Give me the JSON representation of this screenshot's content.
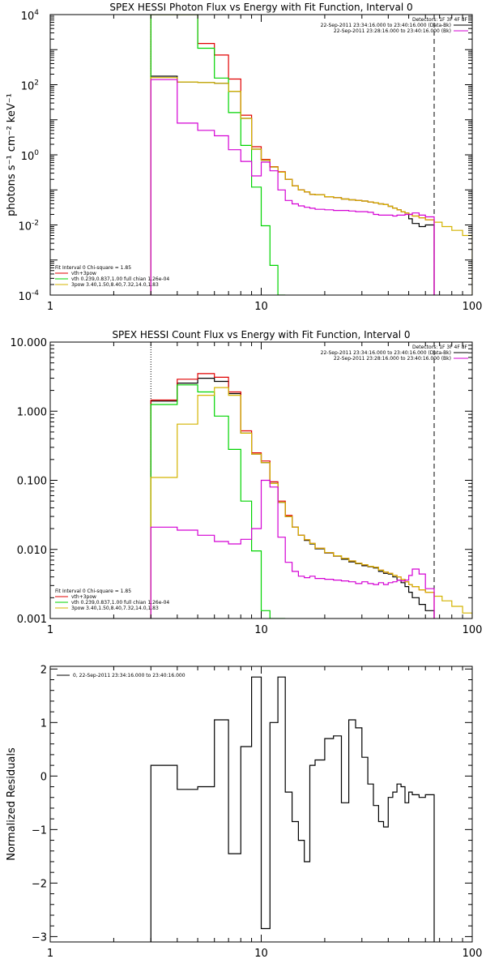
{
  "chart_data": [
    {
      "type": "line",
      "title": "SPEX HESSI Photon Flux vs Energy with Fit Function, Interval 0",
      "xlabel": "",
      "ylabel": "photons s⁻¹ cm⁻² keV⁻¹",
      "xscale": "log",
      "yscale": "log",
      "xlim": [
        1,
        100
      ],
      "ylim": [
        0.0001,
        10000
      ],
      "x_ticks": [
        1,
        10,
        100
      ],
      "y_ticks": [
        0.0001,
        0.01,
        1,
        100,
        10000
      ],
      "x_tick_labels": [
        "1",
        "10",
        "100"
      ],
      "y_tick_labels": [
        {
          "base": "10",
          "exp": "-4"
        },
        {
          "base": "10",
          "exp": "-2"
        },
        {
          "base": "10",
          "exp": "0"
        },
        {
          "base": "10",
          "exp": "2"
        },
        {
          "base": "10",
          "exp": "4"
        }
      ],
      "vlines": [
        {
          "x": 3.0,
          "style": "dotted",
          "color": "#000000"
        },
        {
          "x": 66.0,
          "style": "dashed",
          "color": "#000000"
        }
      ],
      "legend_top": [
        {
          "text": "Detectors: 1F 3F 4F 8F",
          "color": ""
        },
        {
          "text": "22-Sep-2011 23:34:16.000 to 23:40:16.000 (Data-Bk)",
          "color": "#000000"
        },
        {
          "text": "22-Sep-2011 23:28:16.000 to 23:40:16.000 (Bk)",
          "color": "#d400d4"
        }
      ],
      "legend_bottom": [
        {
          "text": "Fit Interval 0   Chi-square = 1.85",
          "color": ""
        },
        {
          "text": "vth+3pow",
          "color": "#e00000"
        },
        {
          "text": "vth 0.239,0.837,1.00  full chian 1.26e-04",
          "color": "#00d400"
        },
        {
          "text": "3pow 3.40,1.50,8.40,7.32,14.0,1.83",
          "color": "#d4b400"
        }
      ],
      "series": [
        {
          "color": "#000000",
          "edges": [
            3,
            4,
            5,
            6,
            7,
            8,
            9,
            10,
            11,
            12,
            13,
            14,
            15,
            16,
            17,
            18,
            20,
            22,
            24,
            26,
            28,
            30,
            32,
            34,
            36,
            38,
            40,
            42,
            44,
            46,
            48,
            50,
            52,
            56,
            60,
            66
          ],
          "values": [
            175,
            120,
            115,
            110,
            65,
            11,
            1.45,
            0.7,
            0.45,
            0.32,
            0.2,
            0.13,
            0.1,
            0.088,
            0.075,
            0.072,
            0.064,
            0.06,
            0.055,
            0.052,
            0.05,
            0.048,
            0.045,
            0.043,
            0.04,
            0.038,
            0.034,
            0.03,
            0.027,
            0.024,
            0.022,
            0.015,
            0.011,
            0.009,
            0.01
          ]
        },
        {
          "color": "#e00000",
          "edges": [
            3,
            4,
            5,
            6,
            7,
            8,
            9,
            10,
            11,
            12,
            13,
            14,
            15,
            16,
            17,
            18,
            20,
            22,
            24,
            26,
            28,
            30,
            32,
            34,
            36,
            38,
            40,
            42,
            44,
            46,
            48,
            50,
            52,
            56,
            60,
            66
          ],
          "values": [
            10000,
            10000,
            1500,
            700,
            145,
            13.5,
            1.7,
            0.74,
            0.46,
            0.33,
            0.2,
            0.13,
            0.1,
            0.088,
            0.075,
            0.072,
            0.064,
            0.06,
            0.055,
            0.052,
            0.05,
            0.048,
            0.045,
            0.043,
            0.04,
            0.038,
            0.034,
            0.03,
            0.027,
            0.024,
            0.022,
            0.02,
            0.018,
            0.016,
            0.014
          ]
        },
        {
          "color": "#00d400",
          "edges": [
            3,
            4,
            5,
            6,
            7,
            8,
            9,
            10,
            11,
            12,
            13
          ],
          "values": [
            10000,
            10000,
            1100,
            155,
            16,
            1.85,
            0.12,
            0.0095,
            0.0007,
            5e-05
          ]
        },
        {
          "color": "#d4b400",
          "edges": [
            3,
            4,
            5,
            6,
            7,
            8,
            9,
            10,
            11,
            12,
            13,
            14,
            15,
            16,
            17,
            18,
            20,
            22,
            24,
            26,
            28,
            30,
            32,
            34,
            36,
            38,
            40,
            42,
            44,
            46,
            48,
            50,
            52,
            56,
            60,
            66,
            72,
            80,
            90,
            100
          ],
          "values": [
            160,
            120,
            115,
            110,
            65,
            11,
            1.45,
            0.7,
            0.45,
            0.32,
            0.2,
            0.13,
            0.1,
            0.088,
            0.075,
            0.072,
            0.064,
            0.06,
            0.055,
            0.052,
            0.05,
            0.048,
            0.045,
            0.043,
            0.04,
            0.038,
            0.034,
            0.03,
            0.027,
            0.024,
            0.022,
            0.02,
            0.018,
            0.016,
            0.014,
            0.012,
            0.009,
            0.007,
            0.005
          ]
        },
        {
          "color": "#d400d4",
          "edges": [
            3,
            4,
            5,
            6,
            7,
            8,
            9,
            10,
            11,
            12,
            13,
            14,
            15,
            16,
            17,
            18,
            20,
            22,
            24,
            26,
            28,
            30,
            32,
            34,
            36,
            38,
            40,
            42,
            44,
            46,
            48,
            50,
            52,
            56,
            60,
            66
          ],
          "values": [
            140,
            8,
            5,
            3.5,
            1.4,
            0.65,
            0.25,
            0.62,
            0.35,
            0.1,
            0.05,
            0.04,
            0.035,
            0.032,
            0.03,
            0.028,
            0.027,
            0.026,
            0.026,
            0.025,
            0.024,
            0.024,
            0.023,
            0.02,
            0.019,
            0.019,
            0.019,
            0.018,
            0.019,
            0.019,
            0.02,
            0.02,
            0.022,
            0.019,
            0.017
          ]
        }
      ]
    },
    {
      "type": "line",
      "title": "SPEX HESSI Count Flux vs Energy with Fit Function, Interval 0",
      "xlabel": "",
      "ylabel": "",
      "xscale": "log",
      "yscale": "log",
      "xlim": [
        1,
        100
      ],
      "ylim": [
        0.001,
        10
      ],
      "x_ticks": [
        1,
        10,
        100
      ],
      "y_ticks": [
        0.001,
        0.01,
        0.1,
        1,
        10
      ],
      "x_tick_labels": [
        "1",
        "10",
        "100"
      ],
      "y_tick_labels": [
        "0.001",
        "0.010",
        "0.100",
        "1.000",
        "10.000"
      ],
      "vlines": [
        {
          "x": 3.0,
          "style": "dotted",
          "color": "#000000"
        },
        {
          "x": 66.0,
          "style": "dashed",
          "color": "#000000"
        }
      ],
      "legend_top": [
        {
          "text": "Detectors: 1F 3F 4F 8F",
          "color": ""
        },
        {
          "text": "22-Sep-2011 23:34:16.000 to 23:40:16.000 (Data-Bk)",
          "color": "#000000"
        },
        {
          "text": "22-Sep-2011 23:28:16.000 to 23:40:16.000 (Bk)",
          "color": "#d400d4"
        }
      ],
      "legend_bottom": [
        {
          "text": "Fit Interval 0   Chi-square = 1.85",
          "color": ""
        },
        {
          "text": "vth+3pow",
          "color": "#e00000"
        },
        {
          "text": "vth 0.239,0.837,1.00  full chian 1.26e-04",
          "color": "#00d400"
        },
        {
          "text": "3pow 3.40,1.50,8.40,7.32,14.0,1.83",
          "color": "#d4b400"
        }
      ],
      "series": [
        {
          "color": "#000000",
          "edges": [
            3,
            4,
            5,
            6,
            7,
            8,
            9,
            10,
            11,
            12,
            13,
            14,
            15,
            16,
            17,
            18,
            20,
            22,
            24,
            26,
            28,
            30,
            32,
            34,
            36,
            38,
            40,
            42,
            44,
            46,
            48,
            50,
            52,
            56,
            60,
            66
          ],
          "values": [
            1.4,
            2.55,
            3.0,
            2.7,
            1.8,
            0.48,
            0.24,
            0.18,
            0.09,
            0.048,
            0.03,
            0.021,
            0.016,
            0.0135,
            0.012,
            0.0102,
            0.0089,
            0.008,
            0.0072,
            0.0066,
            0.0062,
            0.0058,
            0.0056,
            0.0054,
            0.0048,
            0.0045,
            0.0044,
            0.004,
            0.0036,
            0.0033,
            0.0029,
            0.0024,
            0.002,
            0.0016,
            0.0013
          ]
        },
        {
          "color": "#e00000",
          "edges": [
            3,
            4,
            5,
            6,
            7,
            8,
            9,
            10,
            11,
            12,
            13,
            14,
            15,
            16,
            17,
            18,
            20,
            22,
            24,
            26,
            28,
            30,
            32,
            34,
            36,
            38,
            40,
            42,
            44,
            46,
            48,
            50,
            52,
            56,
            60,
            66
          ],
          "values": [
            1.45,
            2.9,
            3.5,
            3.1,
            1.9,
            0.52,
            0.25,
            0.19,
            0.095,
            0.05,
            0.031,
            0.021,
            0.016,
            0.0138,
            0.0122,
            0.0104,
            0.009,
            0.0081,
            0.0074,
            0.0068,
            0.0063,
            0.006,
            0.0057,
            0.0055,
            0.005,
            0.0047,
            0.0045,
            0.0042,
            0.004,
            0.0037,
            0.0034,
            0.0031,
            0.0029,
            0.0026,
            0.0024
          ]
        },
        {
          "color": "#00d400",
          "edges": [
            3,
            4,
            5,
            6,
            7,
            8,
            9,
            10,
            11,
            12,
            13
          ],
          "values": [
            1.25,
            2.4,
            1.9,
            0.85,
            0.28,
            0.05,
            0.0095,
            0.0013,
            0.0009,
            0.0009
          ]
        },
        {
          "color": "#d4b400",
          "edges": [
            3,
            4,
            5,
            6,
            7,
            8,
            9,
            10,
            11,
            12,
            13,
            14,
            15,
            16,
            17,
            18,
            20,
            22,
            24,
            26,
            28,
            30,
            32,
            34,
            36,
            38,
            40,
            42,
            44,
            46,
            48,
            50,
            52,
            56,
            60,
            66,
            72,
            80,
            90,
            100
          ],
          "values": [
            0.11,
            0.65,
            1.7,
            2.2,
            1.7,
            0.48,
            0.24,
            0.18,
            0.09,
            0.048,
            0.03,
            0.021,
            0.016,
            0.0138,
            0.0122,
            0.0104,
            0.009,
            0.0081,
            0.0074,
            0.0068,
            0.0063,
            0.006,
            0.0057,
            0.0055,
            0.005,
            0.0047,
            0.0045,
            0.0042,
            0.004,
            0.0037,
            0.0034,
            0.0031,
            0.0029,
            0.0026,
            0.0024,
            0.0021,
            0.0018,
            0.0015,
            0.0012
          ]
        },
        {
          "color": "#d400d4",
          "edges": [
            3,
            4,
            5,
            6,
            7,
            8,
            9,
            10,
            11,
            12,
            13,
            14,
            15,
            16,
            17,
            18,
            20,
            22,
            24,
            26,
            28,
            30,
            32,
            34,
            36,
            38,
            40,
            42,
            44,
            46,
            48,
            50,
            52,
            56,
            60,
            66
          ],
          "values": [
            0.021,
            0.019,
            0.016,
            0.013,
            0.012,
            0.014,
            0.02,
            0.1,
            0.08,
            0.015,
            0.0065,
            0.0048,
            0.0041,
            0.0039,
            0.0041,
            0.0038,
            0.0037,
            0.0036,
            0.0035,
            0.0034,
            0.0032,
            0.0034,
            0.0032,
            0.0031,
            0.0033,
            0.0031,
            0.0033,
            0.0034,
            0.0036,
            0.0035,
            0.0036,
            0.0042,
            0.0052,
            0.0044,
            0.0027
          ]
        }
      ]
    },
    {
      "type": "line",
      "title": "",
      "xlabel": "",
      "ylabel": "Normalized Residuals",
      "xscale": "log",
      "yscale": "linear",
      "xlim": [
        1,
        100
      ],
      "ylim": [
        -3.1,
        2.05
      ],
      "x_ticks": [
        1,
        10,
        100
      ],
      "y_ticks": [
        -3,
        -2,
        -1,
        0,
        1,
        2
      ],
      "x_tick_labels": [
        "1",
        "10",
        "100"
      ],
      "y_tick_labels": [
        "−3",
        "−2",
        "−1",
        "0",
        "1",
        "2"
      ],
      "vlines": [],
      "legend_top": [
        {
          "text": "0, 22-Sep-2011 23:34:16.000 to 23:40:16.000",
          "color": "#000000"
        }
      ],
      "legend_bottom": [],
      "series": [
        {
          "color": "#000000",
          "drop_to_bottom": true,
          "edges": [
            3,
            4,
            5,
            6,
            7,
            8,
            9,
            10,
            11,
            12,
            13,
            14,
            15,
            16,
            17,
            18,
            20,
            22,
            24,
            26,
            28,
            30,
            32,
            34,
            36,
            38,
            40,
            42,
            44,
            46,
            48,
            50,
            52,
            56,
            60,
            66
          ],
          "values": [
            0.2,
            -0.25,
            -0.2,
            1.05,
            -1.45,
            0.55,
            1.85,
            -2.85,
            1.0,
            1.85,
            -0.3,
            -0.85,
            -1.2,
            -1.6,
            0.2,
            0.3,
            0.7,
            0.75,
            -0.5,
            1.05,
            0.9,
            0.35,
            -0.15,
            -0.55,
            -0.85,
            -0.95,
            -0.4,
            -0.3,
            -0.15,
            -0.2,
            -0.5,
            -0.3,
            -0.35,
            -0.4,
            -0.35
          ]
        }
      ]
    }
  ]
}
